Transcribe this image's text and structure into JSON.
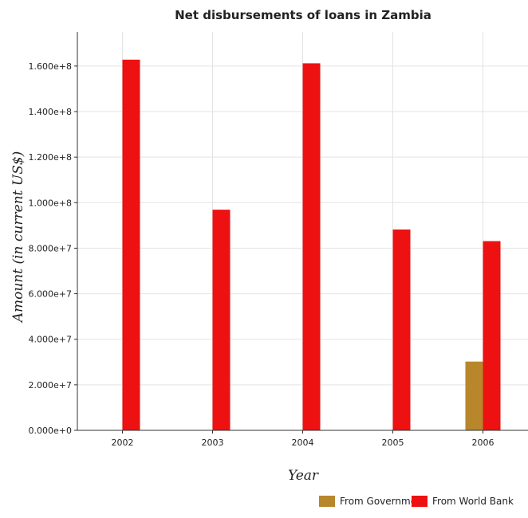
{
  "chart_data": {
    "type": "bar",
    "title": "Net disbursements of loans in Zambia",
    "xlabel": "Year",
    "ylabel": "Amount (in current US$)",
    "categories": [
      "2002",
      "2003",
      "2004",
      "2005",
      "2006"
    ],
    "series": [
      {
        "name": "From Government",
        "color": "#b8862b",
        "values": [
          0,
          0,
          0,
          0,
          30200000
        ]
      },
      {
        "name": "From World Bank",
        "color": "#ee1111",
        "values": [
          162800000,
          96900000,
          161200000,
          88200000,
          83100000
        ]
      }
    ],
    "ylim": [
      0,
      175000000
    ],
    "yticks": [
      0,
      20000000,
      40000000,
      60000000,
      80000000,
      100000000,
      120000000,
      140000000,
      160000000
    ],
    "ytick_labels": [
      "0.000e+0",
      "2.000e+7",
      "4.000e+7",
      "6.000e+7",
      "8.000e+7",
      "1.000e+8",
      "1.200e+8",
      "1.400e+8",
      "1.600e+8"
    ],
    "grid": true,
    "legend_position": "bottom-right"
  }
}
